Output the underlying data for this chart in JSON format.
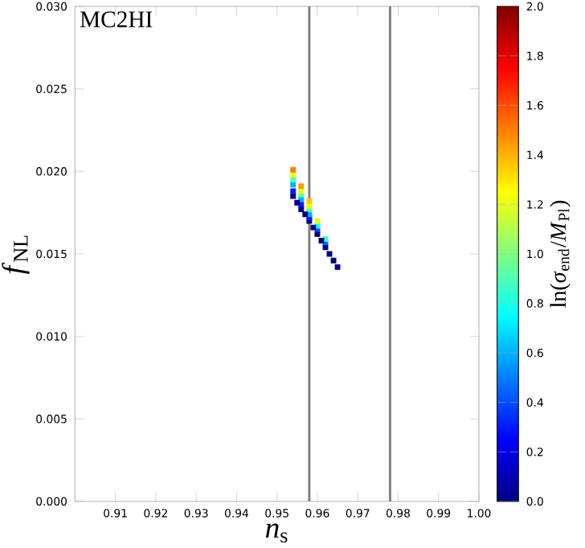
{
  "chart_data": {
    "type": "scatter",
    "title": "MC2HI",
    "xlabel": "*n*$_{s}$",
    "ylabel": "*f*$_{NL}$",
    "clabel": "ln(*σ*$_{end}$/*M*$_{Pl}$)",
    "x": [
      0.954,
      0.954,
      0.954,
      0.954,
      0.954,
      0.954,
      0.956,
      0.956,
      0.956,
      0.956,
      0.956,
      0.956,
      0.958,
      0.958,
      0.958,
      0.958,
      0.958,
      0.958,
      0.96,
      0.96,
      0.96,
      0.96,
      0.962,
      0.962,
      0.962,
      0.955,
      0.957,
      0.959,
      0.961,
      0.963,
      0.964,
      0.965
    ],
    "values": [
      0.0185,
      0.0188,
      0.0192,
      0.0195,
      0.0198,
      0.0201,
      0.0177,
      0.018,
      0.0183,
      0.0186,
      0.0188,
      0.0191,
      0.017,
      0.0172,
      0.0174,
      0.0177,
      0.0179,
      0.0182,
      0.0162,
      0.0165,
      0.0167,
      0.017,
      0.0154,
      0.0157,
      0.0159,
      0.0181,
      0.0174,
      0.0166,
      0.0158,
      0.015,
      0.0146,
      0.0142
    ],
    "cvalues": [
      0,
      0.3,
      0.6,
      0.9,
      1.2,
      1.5,
      0,
      0.3,
      0.6,
      0.9,
      1.2,
      1.45,
      0,
      0.3,
      0.6,
      0.9,
      1.2,
      1.35,
      0,
      0.4,
      0.8,
      1.2,
      0,
      0.45,
      0.9,
      0,
      0,
      0,
      0,
      0,
      0,
      0
    ],
    "marker": "square",
    "clim": [
      0,
      2
    ],
    "cticks": [
      {
        "value": 0,
        "label": "0.0"
      },
      {
        "value": 0.2,
        "label": "0.2"
      },
      {
        "value": 0.4,
        "label": "0.4"
      },
      {
        "value": 0.6,
        "label": "0.6"
      },
      {
        "value": 0.8,
        "label": "0.8"
      },
      {
        "value": 1.0,
        "label": "1.0"
      },
      {
        "value": 1.2,
        "label": "1.2"
      },
      {
        "value": 1.4,
        "label": "1.4"
      },
      {
        "value": 1.6,
        "label": "1.6"
      },
      {
        "value": 1.8,
        "label": "1.8"
      },
      {
        "value": 2.0,
        "label": "2.0"
      }
    ],
    "xlim": [
      0.9,
      1.0
    ],
    "xticks": [
      0.91,
      0.92,
      0.93,
      0.94,
      0.95,
      0.96,
      0.97,
      0.98,
      0.99,
      {
        "value": 1.0,
        "label": "1.00"
      }
    ],
    "ylim": [
      0,
      0.03
    ],
    "yticks": [
      {
        "value": 0,
        "label": "0.000"
      },
      {
        "value": 0.005,
        "label": "0.005"
      },
      {
        "value": 0.01,
        "label": "0.010"
      },
      {
        "value": 0.015,
        "label": "0.015"
      },
      {
        "value": 0.02,
        "label": "0.020"
      },
      {
        "value": 0.025,
        "label": "0.025"
      },
      {
        "value": 0.03,
        "label": "0.030"
      }
    ],
    "ref_lines": [
      {
        "axis": "x",
        "value": 0.958,
        "color": "#808080"
      },
      {
        "axis": "x",
        "value": 0.978,
        "color": "#808080"
      }
    ]
  }
}
